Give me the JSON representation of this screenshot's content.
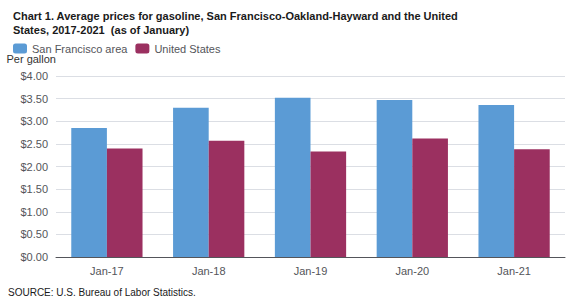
{
  "chart_data": {
    "type": "bar",
    "title": "Chart 1. Average prices for gasoline, San Francisco-Oakland-Hayward and the United\nStates, 2017-2021  (as of January)",
    "ylabel": "Per gallon",
    "source": "SOURCE: U.S. Bureau of Labor Statistics.",
    "categories": [
      "Jan-17",
      "Jan-18",
      "Jan-19",
      "Jan-20",
      "Jan-21"
    ],
    "series": [
      {
        "name": "San Francisco area",
        "color": "#5B9BD5",
        "values": [
          2.85,
          3.3,
          3.52,
          3.47,
          3.36
        ]
      },
      {
        "name": "United States",
        "color": "#9B3060",
        "values": [
          2.4,
          2.57,
          2.33,
          2.62,
          2.38
        ]
      }
    ],
    "ylim": [
      0,
      4.0
    ],
    "yticks": [
      {
        "value": 0.0,
        "label": "$0.00"
      },
      {
        "value": 0.5,
        "label": "$0.50"
      },
      {
        "value": 1.0,
        "label": "$1.00"
      },
      {
        "value": 1.5,
        "label": "$1.50"
      },
      {
        "value": 2.0,
        "label": "$2.00"
      },
      {
        "value": 2.5,
        "label": "$2.50"
      },
      {
        "value": 3.0,
        "label": "$3.00"
      },
      {
        "value": 3.5,
        "label": "$3.50"
      },
      {
        "value": 4.0,
        "label": "$4.00"
      }
    ],
    "grid": true,
    "legend": "upper left"
  }
}
